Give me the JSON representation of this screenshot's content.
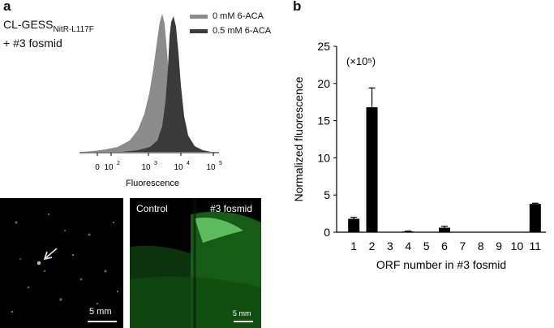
{
  "panels": {
    "a": "a",
    "b": "b"
  },
  "strain": {
    "name": "CL-GESS",
    "subscript": "NitR-L117F",
    "line2": "+ #3 fosmid"
  },
  "histogram": {
    "legend": [
      {
        "label": "0 mM 6-ACA",
        "color": "#8c8c8c"
      },
      {
        "label": "0.5 mM 6-ACA",
        "color": "#3a3a3a"
      }
    ],
    "xlabel": "Fluorescence",
    "ticks": [
      "0",
      "10",
      "2",
      "10",
      "3",
      "10",
      "4",
      "10",
      "5"
    ]
  },
  "micrographs": {
    "left": {
      "scale": "5 mm"
    },
    "right": {
      "label_left": "Control",
      "label_right": "#3 fosmid",
      "scale": "5 mm"
    }
  },
  "chart_data": {
    "type": "bar",
    "title": "",
    "xlabel": "ORF number in #3 fosmid",
    "ylabel": "Normalized fluorescence",
    "multiplier": "(×10⁵)",
    "categories": [
      "1",
      "2",
      "3",
      "4",
      "5",
      "6",
      "7",
      "8",
      "9",
      "10",
      "11"
    ],
    "values": [
      1.8,
      16.8,
      0,
      0.1,
      0,
      0.6,
      0,
      0,
      0,
      0,
      3.8
    ],
    "errors": [
      0.2,
      2.6,
      0,
      0.05,
      0,
      0.2,
      0,
      0,
      0,
      0,
      0.1
    ],
    "ylim": [
      0,
      25
    ],
    "yticks": [
      "0",
      "5",
      "10",
      "15",
      "20",
      "25"
    ],
    "bar_color": "#000000"
  }
}
